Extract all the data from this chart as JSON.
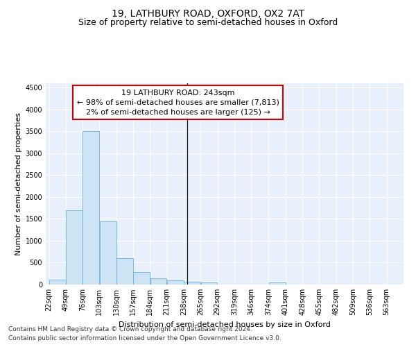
{
  "title_line1": "19, LATHBURY ROAD, OXFORD, OX2 7AT",
  "title_line2": "Size of property relative to semi-detached houses in Oxford",
  "xlabel": "Distribution of semi-detached houses by size in Oxford",
  "ylabel": "Number of semi-detached properties",
  "footnote1": "Contains HM Land Registry data © Crown copyright and database right 2024.",
  "footnote2": "Contains public sector information licensed under the Open Government Licence v3.0.",
  "annotation_line1": "19 LATHBURY ROAD: 243sqm",
  "annotation_line2": "← 98% of semi-detached houses are smaller (7,813)",
  "annotation_line3": "2% of semi-detached houses are larger (125) →",
  "bar_edges": [
    22,
    49,
    76,
    103,
    130,
    157,
    184,
    211,
    238,
    265,
    292,
    319,
    346,
    374,
    401,
    428,
    455,
    482,
    509,
    536,
    563
  ],
  "bar_heights": [
    110,
    1700,
    3500,
    1440,
    610,
    280,
    150,
    100,
    65,
    50,
    0,
    0,
    0,
    40,
    0,
    0,
    0,
    0,
    0,
    0
  ],
  "property_size": 243,
  "bar_color": "#cde4f5",
  "bar_edgecolor": "#6ab0d8",
  "vline_color": "#1a1a1a",
  "annotation_box_edgecolor": "#cc0000",
  "annotation_box_facecolor": "#ffffff",
  "ylim": [
    0,
    4600
  ],
  "yticks": [
    0,
    500,
    1000,
    1500,
    2000,
    2500,
    3000,
    3500,
    4000,
    4500
  ],
  "bg_color": "#e8f0fc",
  "grid_color": "#ffffff",
  "title_fontsize": 10,
  "subtitle_fontsize": 9,
  "axis_label_fontsize": 8,
  "tick_fontsize": 7,
  "annotation_fontsize": 8,
  "footnote_fontsize": 6.5
}
